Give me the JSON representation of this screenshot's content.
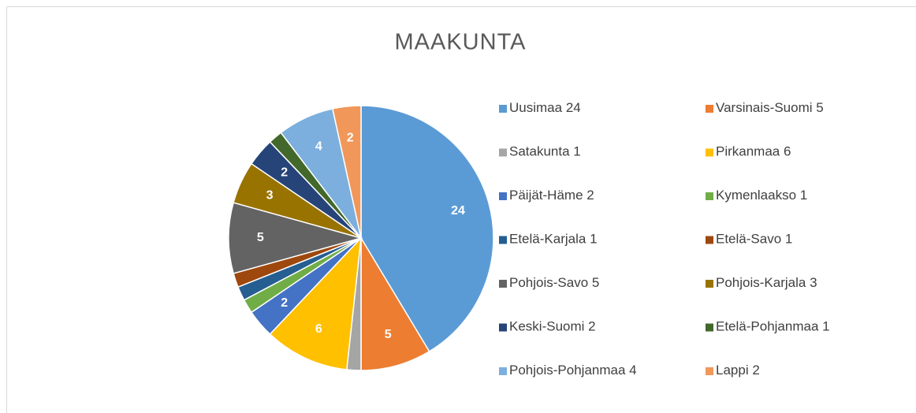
{
  "chart_data": {
    "type": "pie",
    "title": "MAAKUNTA",
    "categories": [
      "Uusimaa",
      "Varsinais-Suomi",
      "Satakunta",
      "Pirkanmaa",
      "Päijät-Häme",
      "Kymenlaakso",
      "Etelä-Karjala",
      "Etelä-Savo",
      "Pohjois-Savo",
      "Pohjois-Karjala",
      "Keski-Suomi",
      "Etelä-Pohjanmaa",
      "Pohjois-Pohjanmaa",
      "Lappi"
    ],
    "values": [
      24,
      5,
      1,
      6,
      2,
      1,
      1,
      1,
      5,
      3,
      2,
      1,
      4,
      2
    ],
    "value_labels": [
      24,
      5,
      null,
      6,
      2,
      null,
      null,
      null,
      5,
      3,
      2,
      null,
      4,
      2
    ],
    "colors": [
      "#5b9bd5",
      "#ed7d31",
      "#a5a5a5",
      "#ffc000",
      "#4472c4",
      "#70ad47",
      "#255e91",
      "#9e480e",
      "#636363",
      "#997300",
      "#264478",
      "#43682b",
      "#7cafdd",
      "#f1975a"
    ],
    "legend": "right"
  }
}
